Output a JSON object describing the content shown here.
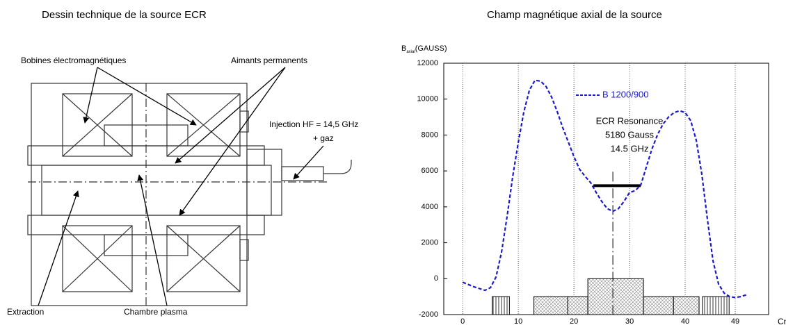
{
  "drawing": {
    "title": "Dessin technique de la source ECR",
    "labels": {
      "coils": "Bobines électromagnétiques",
      "magnets": "Aimants permanents",
      "injection": "Injection HF = 14,5 GHz",
      "gas": "+  gaz",
      "extraction": "Extraction",
      "chamber": "Chambre plasma"
    }
  },
  "chart_data": {
    "type": "line",
    "title": "Champ magnétique axial de la source",
    "y_label": {
      "main": "B",
      "sub": "axial",
      "unit": "(GAUSS)"
    },
    "x_label": "Cm",
    "xlim": [
      -3.4,
      55
    ],
    "ylim": [
      -2000,
      12000
    ],
    "xticks": [
      0,
      10,
      20,
      30,
      40,
      49
    ],
    "yticks": [
      -2000,
      0,
      2000,
      4000,
      6000,
      8000,
      10000,
      12000
    ],
    "grid": true,
    "series": [
      {
        "name": "B 1200/900",
        "color": "#1a1acc",
        "x": [
          0,
          2,
          4,
          5,
          6,
          7,
          8,
          9,
          10,
          11,
          12,
          13,
          14,
          15,
          16,
          17,
          18,
          19,
          20,
          21,
          22,
          23,
          24,
          25,
          26,
          27,
          28,
          29,
          30,
          31,
          32,
          33,
          34,
          35,
          36,
          37,
          38,
          39,
          40,
          41,
          42,
          43,
          44,
          45,
          46,
          47,
          48,
          49,
          50,
          51
        ],
        "values": [
          -200,
          -450,
          -650,
          -500,
          100,
          1500,
          3500,
          5700,
          7600,
          9300,
          10500,
          11050,
          11000,
          10700,
          10100,
          9300,
          8400,
          7600,
          6800,
          6100,
          5700,
          5350,
          4800,
          4300,
          3900,
          3750,
          3900,
          4300,
          4800,
          4900,
          5200,
          6200,
          7200,
          8000,
          8600,
          9000,
          9250,
          9350,
          9250,
          8800,
          7700,
          5800,
          3300,
          1000,
          -300,
          -800,
          -1000,
          -1050,
          -1000,
          -900
        ]
      }
    ],
    "annotation": {
      "lines": [
        "ECR Resonance",
        "5180 Gauss",
        "14.5 GHz"
      ],
      "y": 5180,
      "x": [
        23.5,
        32
      ],
      "axis_x": 27
    },
    "blocks": [
      {
        "x": [
          5.3,
          8.4
        ],
        "y": -1000
      },
      {
        "x": [
          12.8,
          18.9
        ],
        "y": -1000
      },
      {
        "x": [
          18.9,
          22.5
        ],
        "y": -1000
      },
      {
        "x": [
          22.5,
          32.5
        ],
        "y": 0
      },
      {
        "x": [
          32.5,
          37.9
        ],
        "y": -1000
      },
      {
        "x": [
          37.9,
          42.5
        ],
        "y": -1000
      },
      {
        "x": [
          43.1,
          47.9
        ],
        "y": -1000
      }
    ]
  }
}
